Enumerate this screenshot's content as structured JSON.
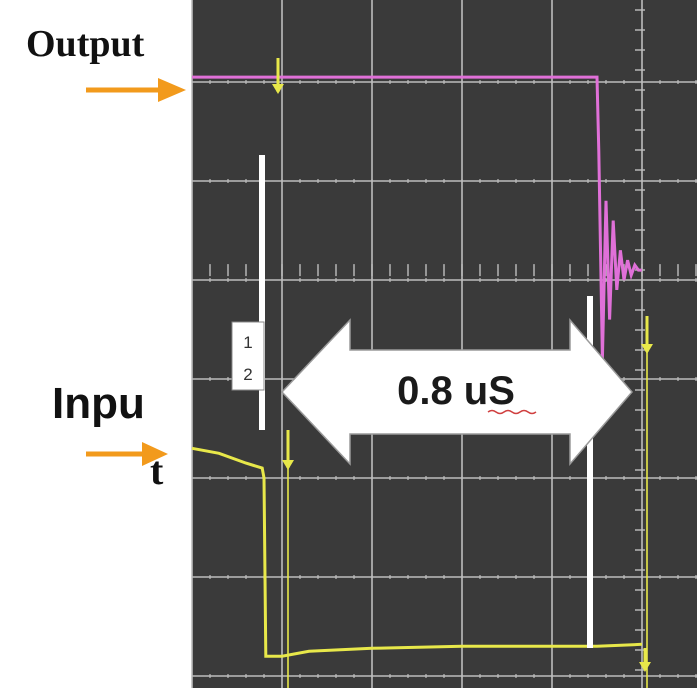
{
  "labels": {
    "output": "Output",
    "input_line1": "Inpu",
    "input_line2": "t",
    "measurement": "0.8 uS",
    "cursor_1": "1",
    "cursor_2": "2"
  },
  "colors": {
    "screen_background": "#3a3a3a",
    "grid": "#bdbdbd",
    "output_trace": "#e070d8",
    "input_trace": "#e8e84a",
    "marker_arrow": "#f29a1c",
    "cursor": "#ffffff",
    "measurement_arrow": "#ffffff",
    "measurement_text": "#1a1a1a",
    "label_text": "#111111"
  },
  "chart_data": {
    "type": "line",
    "title": "",
    "xlabel": "",
    "ylabel": "",
    "grid": true,
    "x_divisions": 5,
    "y_divisions": 7,
    "xlim": [
      0,
      5
    ],
    "ylim": [
      0,
      7
    ],
    "series": [
      {
        "name": "Output",
        "color": "#e070d8",
        "x": [
          0,
          4.5,
          4.52,
          4.56,
          4.6,
          4.64,
          4.68,
          4.72,
          4.76,
          4.8,
          4.84,
          4.88,
          4.92,
          4.96,
          5.0
        ],
        "y": [
          6.05,
          6.05,
          5.3,
          3.2,
          4.8,
          3.6,
          4.6,
          3.9,
          4.3,
          4.0,
          4.2,
          4.05,
          4.15,
          4.1,
          4.1
        ]
      },
      {
        "name": "Input",
        "color": "#e8e84a",
        "x": [
          0,
          0.3,
          0.6,
          0.78,
          0.8,
          0.82,
          1.0,
          1.3,
          2.0,
          3.0,
          4.0,
          4.5,
          5.0
        ],
        "y": [
          2.3,
          2.25,
          2.15,
          2.1,
          2.0,
          0.2,
          0.2,
          0.25,
          0.28,
          0.3,
          0.3,
          0.3,
          0.32
        ]
      }
    ],
    "cursors_x": [
      0.8,
      4.4
    ],
    "measurement": {
      "from_x": 0.8,
      "to_x": 4.4,
      "label": "0.8 uS"
    }
  }
}
